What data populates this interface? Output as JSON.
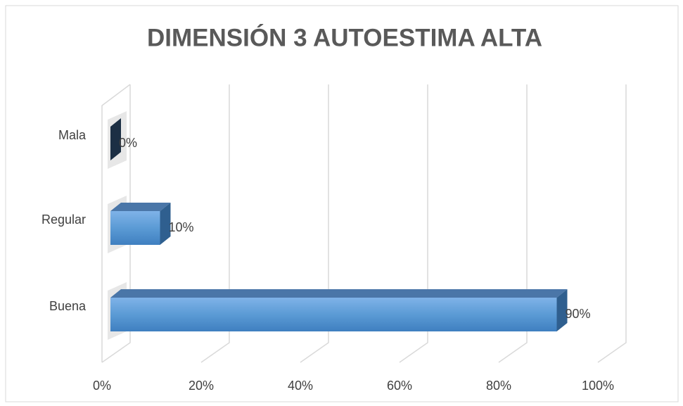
{
  "chart_data": {
    "type": "bar3d_horizontal",
    "title": "DIMENSIÓN 3 AUTOESTIMA ALTA",
    "categories": [
      "Mala",
      "Regular",
      "Buena"
    ],
    "values": [
      0,
      10,
      90
    ],
    "value_labels": [
      "0%",
      "10%",
      "90%"
    ],
    "color": "#5b9bd5",
    "xlim": [
      0,
      100
    ],
    "xticks": [
      {
        "value": 0,
        "label": "0%"
      },
      {
        "value": 20,
        "label": "20%"
      },
      {
        "value": 40,
        "label": "40%"
      },
      {
        "value": 60,
        "label": "60%"
      },
      {
        "value": 80,
        "label": "80%"
      },
      {
        "value": 100,
        "label": "100%"
      }
    ],
    "grid": true
  }
}
